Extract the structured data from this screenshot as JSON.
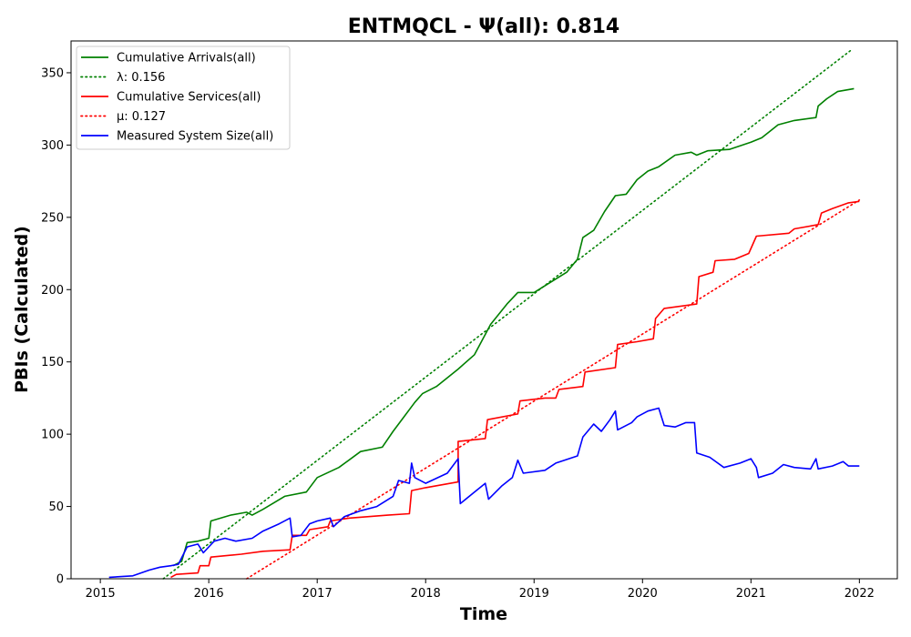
{
  "chart_data": {
    "type": "line",
    "title": "ENTMQCL -  Ψ(all): 0.814",
    "xlabel": "Time",
    "ylabel": "PBIs (Calculated)",
    "xlim": [
      2014.73,
      2022.35
    ],
    "ylim": [
      0,
      372
    ],
    "x_ticks": [
      "2015",
      "2016",
      "2017",
      "2018",
      "2019",
      "2020",
      "2021",
      "2022"
    ],
    "y_ticks": [
      "0",
      "50",
      "100",
      "150",
      "200",
      "250",
      "300",
      "350"
    ],
    "grid": false,
    "legend_position": "top-left",
    "series": [
      {
        "name": "Cumulative Arrivals(all)",
        "color": "#008000",
        "style": "solid",
        "points": [
          [
            2015.67,
            9
          ],
          [
            2015.75,
            12
          ],
          [
            2015.8,
            25
          ],
          [
            2015.9,
            26
          ],
          [
            2016.0,
            28
          ],
          [
            2016.02,
            40
          ],
          [
            2016.2,
            44
          ],
          [
            2016.35,
            46
          ],
          [
            2016.4,
            44
          ],
          [
            2016.5,
            48
          ],
          [
            2016.7,
            57
          ],
          [
            2016.9,
            60
          ],
          [
            2017.0,
            70
          ],
          [
            2017.2,
            77
          ],
          [
            2017.4,
            88
          ],
          [
            2017.6,
            91
          ],
          [
            2017.7,
            102
          ],
          [
            2017.8,
            112
          ],
          [
            2017.9,
            122
          ],
          [
            2017.97,
            128
          ],
          [
            2018.1,
            133
          ],
          [
            2018.3,
            145
          ],
          [
            2018.45,
            155
          ],
          [
            2018.6,
            176
          ],
          [
            2018.75,
            190
          ],
          [
            2018.85,
            198
          ],
          [
            2019.0,
            198
          ],
          [
            2019.15,
            205
          ],
          [
            2019.3,
            212
          ],
          [
            2019.4,
            221
          ],
          [
            2019.45,
            236
          ],
          [
            2019.55,
            241
          ],
          [
            2019.65,
            254
          ],
          [
            2019.75,
            265
          ],
          [
            2019.85,
            266
          ],
          [
            2019.95,
            276
          ],
          [
            2020.05,
            282
          ],
          [
            2020.15,
            285
          ],
          [
            2020.3,
            293
          ],
          [
            2020.45,
            295
          ],
          [
            2020.5,
            293
          ],
          [
            2020.6,
            296
          ],
          [
            2020.8,
            297
          ],
          [
            2021.0,
            302
          ],
          [
            2021.1,
            305
          ],
          [
            2021.25,
            314
          ],
          [
            2021.4,
            317
          ],
          [
            2021.6,
            319
          ],
          [
            2021.62,
            327
          ],
          [
            2021.7,
            332
          ],
          [
            2021.8,
            337
          ],
          [
            2021.95,
            339
          ]
        ]
      },
      {
        "name": "λ: 0.156",
        "color": "#008000",
        "style": "dotted",
        "points": [
          [
            2015.58,
            0
          ],
          [
            2021.93,
            366
          ]
        ]
      },
      {
        "name": "Cumulative Services(all)",
        "color": "#ff0000",
        "style": "solid",
        "points": [
          [
            2015.65,
            1
          ],
          [
            2015.7,
            3
          ],
          [
            2015.9,
            4
          ],
          [
            2015.92,
            9
          ],
          [
            2016.0,
            9
          ],
          [
            2016.02,
            15
          ],
          [
            2016.3,
            17
          ],
          [
            2016.5,
            19
          ],
          [
            2016.75,
            20
          ],
          [
            2016.77,
            30
          ],
          [
            2016.9,
            30
          ],
          [
            2016.93,
            34
          ],
          [
            2017.1,
            36
          ],
          [
            2017.12,
            40
          ],
          [
            2017.3,
            42
          ],
          [
            2017.65,
            44
          ],
          [
            2017.85,
            45
          ],
          [
            2017.87,
            61
          ],
          [
            2018.0,
            63
          ],
          [
            2018.3,
            67
          ],
          [
            2018.3,
            95
          ],
          [
            2018.55,
            97
          ],
          [
            2018.57,
            110
          ],
          [
            2018.85,
            114
          ],
          [
            2018.87,
            123
          ],
          [
            2019.1,
            125
          ],
          [
            2019.2,
            125
          ],
          [
            2019.23,
            131
          ],
          [
            2019.45,
            133
          ],
          [
            2019.47,
            143
          ],
          [
            2019.75,
            146
          ],
          [
            2019.77,
            162
          ],
          [
            2019.95,
            164
          ],
          [
            2020.1,
            166
          ],
          [
            2020.12,
            180
          ],
          [
            2020.2,
            187
          ],
          [
            2020.5,
            190
          ],
          [
            2020.52,
            209
          ],
          [
            2020.65,
            212
          ],
          [
            2020.67,
            220
          ],
          [
            2020.85,
            221
          ],
          [
            2020.98,
            225
          ],
          [
            2021.05,
            237
          ],
          [
            2021.35,
            239
          ],
          [
            2021.4,
            242
          ],
          [
            2021.62,
            245
          ],
          [
            2021.65,
            253
          ],
          [
            2021.75,
            256
          ],
          [
            2021.9,
            260
          ],
          [
            2022.0,
            261
          ]
        ]
      },
      {
        "name": "μ: 0.127",
        "color": "#ff0000",
        "style": "dotted",
        "points": [
          [
            2016.35,
            0
          ],
          [
            2022.0,
            262
          ]
        ]
      },
      {
        "name": "Measured System Size(all)",
        "color": "#0000ff",
        "style": "solid",
        "points": [
          [
            2015.08,
            1
          ],
          [
            2015.3,
            2
          ],
          [
            2015.45,
            6
          ],
          [
            2015.55,
            8
          ],
          [
            2015.65,
            9
          ],
          [
            2015.72,
            10
          ],
          [
            2015.8,
            22
          ],
          [
            2015.9,
            24
          ],
          [
            2015.95,
            18
          ],
          [
            2016.0,
            22
          ],
          [
            2016.05,
            26
          ],
          [
            2016.15,
            28
          ],
          [
            2016.25,
            26
          ],
          [
            2016.4,
            28
          ],
          [
            2016.5,
            33
          ],
          [
            2016.65,
            38
          ],
          [
            2016.75,
            42
          ],
          [
            2016.77,
            29
          ],
          [
            2016.85,
            30
          ],
          [
            2016.93,
            38
          ],
          [
            2017.0,
            40
          ],
          [
            2017.12,
            42
          ],
          [
            2017.15,
            36
          ],
          [
            2017.25,
            43
          ],
          [
            2017.4,
            47
          ],
          [
            2017.55,
            50
          ],
          [
            2017.7,
            57
          ],
          [
            2017.75,
            68
          ],
          [
            2017.85,
            66
          ],
          [
            2017.87,
            80
          ],
          [
            2017.9,
            70
          ],
          [
            2018.0,
            66
          ],
          [
            2018.2,
            73
          ],
          [
            2018.3,
            83
          ],
          [
            2018.32,
            52
          ],
          [
            2018.45,
            60
          ],
          [
            2018.55,
            66
          ],
          [
            2018.58,
            55
          ],
          [
            2018.7,
            64
          ],
          [
            2018.8,
            70
          ],
          [
            2018.85,
            82
          ],
          [
            2018.9,
            73
          ],
          [
            2019.1,
            75
          ],
          [
            2019.2,
            80
          ],
          [
            2019.4,
            85
          ],
          [
            2019.45,
            98
          ],
          [
            2019.55,
            107
          ],
          [
            2019.62,
            102
          ],
          [
            2019.7,
            110
          ],
          [
            2019.75,
            116
          ],
          [
            2019.77,
            103
          ],
          [
            2019.9,
            108
          ],
          [
            2019.95,
            112
          ],
          [
            2020.05,
            116
          ],
          [
            2020.15,
            118
          ],
          [
            2020.2,
            106
          ],
          [
            2020.3,
            105
          ],
          [
            2020.4,
            108
          ],
          [
            2020.48,
            108
          ],
          [
            2020.5,
            87
          ],
          [
            2020.62,
            84
          ],
          [
            2020.75,
            77
          ],
          [
            2020.9,
            80
          ],
          [
            2021.0,
            83
          ],
          [
            2021.05,
            77
          ],
          [
            2021.07,
            70
          ],
          [
            2021.2,
            73
          ],
          [
            2021.3,
            79
          ],
          [
            2021.4,
            77
          ],
          [
            2021.55,
            76
          ],
          [
            2021.6,
            83
          ],
          [
            2021.62,
            76
          ],
          [
            2021.75,
            78
          ],
          [
            2021.85,
            81
          ],
          [
            2021.9,
            78
          ],
          [
            2022.0,
            78
          ]
        ]
      }
    ]
  }
}
